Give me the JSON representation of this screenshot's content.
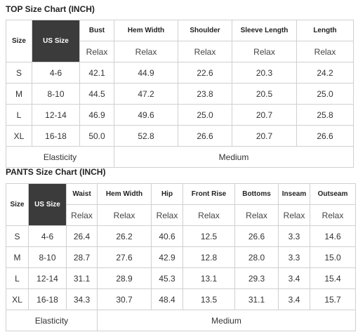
{
  "tables": [
    {
      "title": "TOP Size Chart (INCH)",
      "header": [
        "Size",
        "US Size",
        "Bust",
        "Hem Width",
        "Shoulder",
        "Sleeve Length",
        "Length"
      ],
      "subheader": [
        "Relax",
        "Relax",
        "Relax",
        "Relax",
        "Relax"
      ],
      "rows": [
        [
          "S",
          "4-6",
          "42.1",
          "44.9",
          "22.6",
          "20.3",
          "24.2"
        ],
        [
          "M",
          "8-10",
          "44.5",
          "47.2",
          "23.8",
          "20.5",
          "25.0"
        ],
        [
          "L",
          "12-14",
          "46.9",
          "49.6",
          "25.0",
          "20.7",
          "25.8"
        ],
        [
          "XL",
          "16-18",
          "50.0",
          "52.8",
          "26.6",
          "20.7",
          "26.6"
        ]
      ],
      "footer": [
        "Elasticity",
        "Medium"
      ]
    },
    {
      "title": "PANTS Size Chart (INCH)",
      "header": [
        "Size",
        "US Size",
        "Waist",
        "Hem Width",
        "Hip",
        "Front Rise",
        "Bottoms",
        "Inseam",
        "Outseam"
      ],
      "subheader": [
        "Relax",
        "Relax",
        "Relax",
        "Relax",
        "Relax",
        "Relax",
        "Relax"
      ],
      "rows": [
        [
          "S",
          "4-6",
          "26.4",
          "26.2",
          "40.6",
          "12.5",
          "26.6",
          "3.3",
          "14.6"
        ],
        [
          "M",
          "8-10",
          "28.7",
          "27.6",
          "42.9",
          "12.8",
          "28.0",
          "3.3",
          "15.0"
        ],
        [
          "L",
          "12-14",
          "31.1",
          "28.9",
          "45.3",
          "13.1",
          "29.3",
          "3.4",
          "15.4"
        ],
        [
          "XL",
          "16-18",
          "34.3",
          "30.7",
          "48.4",
          "13.5",
          "31.1",
          "3.4",
          "15.7"
        ]
      ],
      "footer": [
        "Elasticity",
        "Medium"
      ]
    }
  ]
}
